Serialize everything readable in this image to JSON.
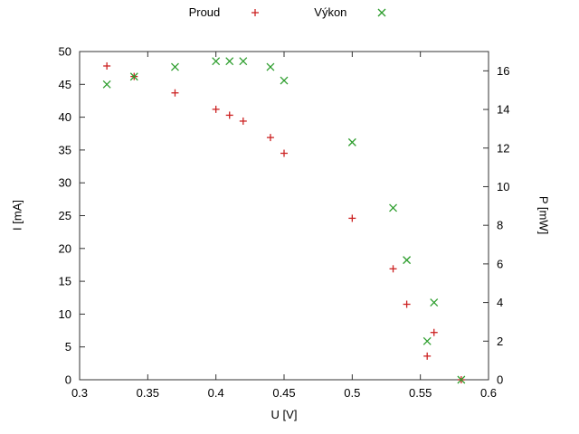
{
  "chart_data": {
    "type": "scatter",
    "title": "",
    "xlabel": "U [V]",
    "ylabel": "I [mA]",
    "y2label": "P [mW]",
    "xlim": [
      0.3,
      0.6
    ],
    "ylim": [
      0,
      50
    ],
    "y2lim": [
      0,
      17
    ],
    "grid": false,
    "legend_position": "top-center",
    "xtick_vals": [
      0.3,
      0.35,
      0.4,
      0.45,
      0.5,
      0.55,
      0.6
    ],
    "xtick_labels": [
      "0.3",
      "0.35",
      "0.4",
      "0.45",
      "0.5",
      "0.55",
      "0.6"
    ],
    "ytick_vals": [
      0,
      5,
      10,
      15,
      20,
      25,
      30,
      35,
      40,
      45,
      50
    ],
    "ytick_labels": [
      "0",
      "5",
      "10",
      "15",
      "20",
      "25",
      "30",
      "35",
      "40",
      "45",
      "50"
    ],
    "y2tick_vals": [
      0,
      2,
      4,
      6,
      8,
      10,
      12,
      14,
      16
    ],
    "y2tick_labels": [
      "0",
      "2",
      "4",
      "6",
      "8",
      "10",
      "12",
      "14",
      "16"
    ],
    "colors": {
      "border": "#333333",
      "tick": "#333333",
      "text": "#000000",
      "background": "#ffffff"
    },
    "series": [
      {
        "name": "Proud",
        "marker": "plus",
        "color": "#cc2222",
        "axis": "left",
        "points": [
          [
            0.32,
            47.8
          ],
          [
            0.34,
            46.2
          ],
          [
            0.37,
            43.7
          ],
          [
            0.4,
            41.2
          ],
          [
            0.41,
            40.3
          ],
          [
            0.42,
            39.4
          ],
          [
            0.44,
            36.9
          ],
          [
            0.45,
            34.5
          ],
          [
            0.5,
            24.6
          ],
          [
            0.53,
            16.9
          ],
          [
            0.54,
            11.5
          ],
          [
            0.56,
            7.2
          ],
          [
            0.555,
            3.6
          ],
          [
            0.58,
            0.0
          ]
        ]
      },
      {
        "name": "Výkon",
        "marker": "cross",
        "color": "#2e9e2e",
        "axis": "right",
        "points": [
          [
            0.32,
            15.3
          ],
          [
            0.34,
            15.7
          ],
          [
            0.37,
            16.2
          ],
          [
            0.4,
            16.5
          ],
          [
            0.41,
            16.5
          ],
          [
            0.42,
            16.5
          ],
          [
            0.44,
            16.2
          ],
          [
            0.45,
            15.5
          ],
          [
            0.5,
            12.3
          ],
          [
            0.53,
            8.9
          ],
          [
            0.54,
            6.2
          ],
          [
            0.56,
            4.0
          ],
          [
            0.555,
            2.0
          ],
          [
            0.58,
            0.0
          ]
        ]
      }
    ]
  }
}
